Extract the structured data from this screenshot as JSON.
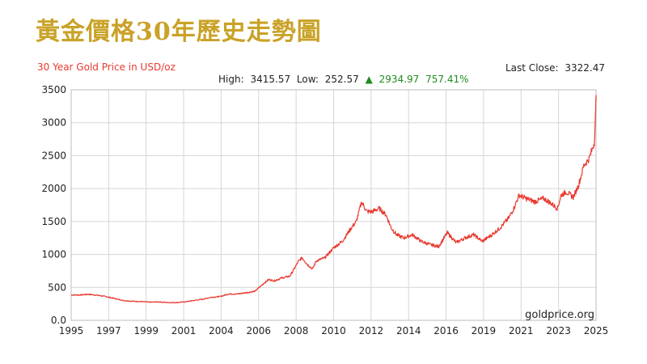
{
  "header": {
    "title": "黃金價格30年歷史走勢圖"
  },
  "chart_data": {
    "type": "line",
    "title": "",
    "subtitle": "30 Year Gold Price in USD/oz",
    "xlabel": "",
    "ylabel": "",
    "xlim": [
      1995,
      2025
    ],
    "ylim": [
      0,
      3500
    ],
    "grid": true,
    "legend": "none",
    "x_tick_labels": [
      "1995",
      "1997",
      "1999",
      "2001",
      "2004",
      "2006",
      "2008",
      "2010",
      "2012",
      "2014",
      "2016",
      "2019",
      "2021",
      "2023",
      "2025"
    ],
    "y_tick_labels": [
      "0.0",
      "500",
      "1000",
      "1500",
      "2000",
      "2500",
      "3000",
      "3500"
    ],
    "stats": {
      "last_close_label": "Last Close:",
      "last_close": "3322.47",
      "high_label": "High:",
      "high": "3415.57",
      "low_label": "Low:",
      "low": "252.57",
      "change_arrow": "▲",
      "change": "2934.97",
      "change_pct": "757.41%"
    },
    "watermark": "goldprice.org",
    "line_color": "#E8392E",
    "series": [
      {
        "x": [
          1995.0,
          1995.5,
          1996.0,
          1996.5,
          1997.0,
          1997.5,
          1998.0,
          1998.5,
          1999.0,
          1999.5,
          2000.0,
          2000.5,
          2001.0,
          2001.5,
          2002.0,
          2002.5,
          2003.0,
          2003.5,
          2004.0,
          2004.5,
          2005.0,
          2005.5,
          2006.0,
          2006.3,
          2006.6,
          2007.0,
          2007.5,
          2008.0,
          2008.2,
          2008.5,
          2008.8,
          2009.0,
          2009.5,
          2010.0,
          2010.5,
          2011.0,
          2011.3,
          2011.6,
          2011.9,
          2012.2,
          2012.6,
          2013.0,
          2013.3,
          2013.6,
          2014.0,
          2014.5,
          2015.0,
          2015.5,
          2016.0,
          2016.5,
          2017.0,
          2017.5,
          2018.0,
          2018.5,
          2019.0,
          2019.5,
          2020.0,
          2020.3,
          2020.6,
          2021.0,
          2021.5,
          2022.0,
          2022.3,
          2022.8,
          2023.0,
          2023.3,
          2023.7,
          2024.0,
          2024.3,
          2024.6,
          2024.9,
          2025.0
        ],
        "y": [
          385,
          385,
          395,
          380,
          360,
          330,
          300,
          290,
          285,
          275,
          280,
          270,
          270,
          280,
          300,
          320,
          350,
          360,
          400,
          400,
          420,
          440,
          560,
          620,
          600,
          640,
          670,
          900,
          950,
          850,
          780,
          900,
          950,
          1100,
          1200,
          1400,
          1500,
          1800,
          1650,
          1650,
          1700,
          1600,
          1400,
          1300,
          1250,
          1300,
          1200,
          1150,
          1120,
          1330,
          1180,
          1250,
          1300,
          1200,
          1290,
          1400,
          1550,
          1700,
          1900,
          1850,
          1800,
          1850,
          1800,
          1700,
          1900,
          1950,
          1870,
          2050,
          2350,
          2450,
          2700,
          3322
        ]
      }
    ]
  }
}
